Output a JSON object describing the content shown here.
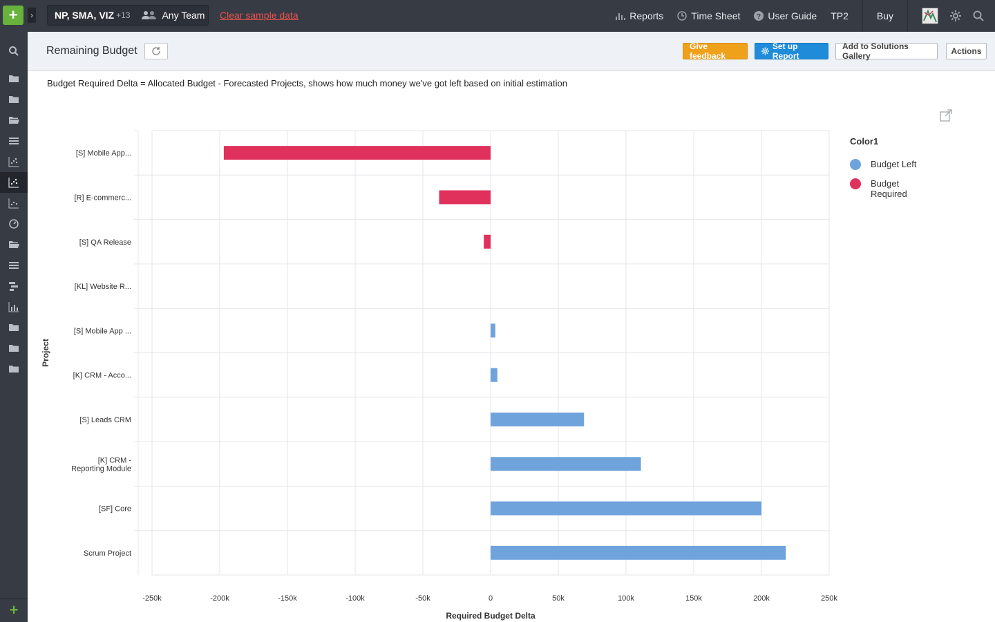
{
  "topbar": {
    "workspace": "NP, SMA, VIZ",
    "workspace_count": "+13",
    "team": "Any Team",
    "clear_link": "Clear sample data",
    "nav": {
      "reports": "Reports",
      "timesheet": "Time Sheet",
      "user_guide": "User Guide",
      "tp2": "TP2",
      "buy": "Buy"
    }
  },
  "header": {
    "title": "Remaining Budget",
    "give_feedback": "Give feedback",
    "setup_report": "Set up Report",
    "add_gallery": "Add to Solutions Gallery",
    "actions": "Actions"
  },
  "description": "Budget Required Delta = Allocated Budget - Forecasted Projects, shows how much money we've got left based on initial estimation",
  "legend": {
    "title": "Color1",
    "items": [
      {
        "label": "Budget Left",
        "color": "#6fa3dc"
      },
      {
        "label": "Budget Required",
        "color": "#e0305c"
      }
    ]
  },
  "chart_data": {
    "type": "bar",
    "orientation": "horizontal",
    "xlabel": "Required Budget Delta",
    "ylabel": "Project",
    "xlim": [
      -250000,
      250000
    ],
    "xticks": [
      -250000,
      -200000,
      -150000,
      -100000,
      -50000,
      0,
      50000,
      100000,
      150000,
      200000,
      250000
    ],
    "xtick_labels": [
      "-250k",
      "-200k",
      "-150k",
      "-100k",
      "-50k",
      "0",
      "50k",
      "100k",
      "150k",
      "200k",
      "250k"
    ],
    "categories": [
      [
        "[S] Mobile App..."
      ],
      [
        "[R] E-commerc..."
      ],
      [
        "[S] QA Release"
      ],
      [
        "[KL] Website R..."
      ],
      [
        "[S] Mobile App ..."
      ],
      [
        "[K] CRM - Acco..."
      ],
      [
        "[S] Leads CRM"
      ],
      [
        "[K] CRM -",
        "Reporting Module"
      ],
      [
        "[SF] Core"
      ],
      [
        "Scrum Project"
      ]
    ],
    "values": [
      -197000,
      -38000,
      -5000,
      0,
      3500,
      5000,
      69000,
      111000,
      200000,
      218000
    ],
    "series_colors": {
      "Budget Left": "#6fa3dc",
      "Budget Required": "#e0305c"
    },
    "grid": true,
    "legend_position": "right"
  }
}
